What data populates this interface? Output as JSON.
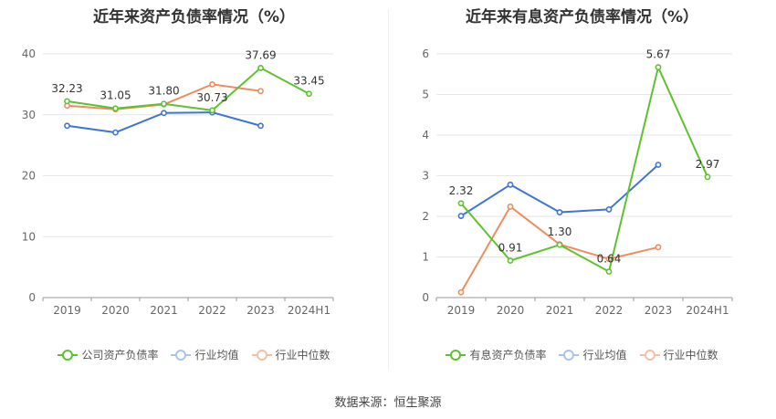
{
  "colors": {
    "company": "#5ec22e",
    "avg": "#3e74d6",
    "median": "#ef8c5f"
  },
  "source": "数据来源：恒生聚源",
  "chart_data": [
    {
      "type": "line",
      "title": "近年来资产负债率情况（%）",
      "categories": [
        "2019",
        "2020",
        "2021",
        "2022",
        "2023",
        "2024H1"
      ],
      "ylim": [
        0,
        40
      ],
      "yticks": [
        0,
        10,
        20,
        30,
        40
      ],
      "grid": true,
      "legend_position": "bottom",
      "series": [
        {
          "name": "公司资产负债率",
          "color": "#5ec22e",
          "values": [
            32.23,
            31.05,
            31.8,
            30.73,
            37.69,
            33.45
          ],
          "labels": [
            "32.23",
            "31.05",
            "31.80",
            "30.73",
            "37.69",
            "33.45"
          ]
        },
        {
          "name": "行业均值",
          "color": "#3e74d6",
          "values": [
            28.2,
            27.1,
            30.3,
            30.4,
            28.2,
            null
          ]
        },
        {
          "name": "行业中位数",
          "color": "#ef8c5f",
          "values": [
            31.5,
            30.9,
            31.7,
            35.0,
            33.9,
            null
          ]
        }
      ]
    },
    {
      "type": "line",
      "title": "近年来有息资产负债率情况（%）",
      "categories": [
        "2019",
        "2020",
        "2021",
        "2022",
        "2023",
        "2024H1"
      ],
      "ylim": [
        0,
        6
      ],
      "yticks": [
        0,
        1,
        2,
        3,
        4,
        5,
        6
      ],
      "grid": true,
      "legend_position": "bottom",
      "series": [
        {
          "name": "有息资产负债率",
          "color": "#5ec22e",
          "values": [
            2.32,
            0.91,
            1.3,
            0.64,
            5.67,
            2.97
          ],
          "labels": [
            "2.32",
            "0.91",
            "1.30",
            "0.64",
            "5.67",
            "2.97"
          ]
        },
        {
          "name": "行业均值",
          "color": "#3e74d6",
          "values": [
            2.01,
            2.78,
            2.1,
            2.17,
            3.27,
            null
          ]
        },
        {
          "name": "行业中位数",
          "color": "#ef8c5f",
          "values": [
            0.13,
            2.24,
            1.31,
            0.95,
            1.24,
            null
          ]
        }
      ]
    }
  ]
}
